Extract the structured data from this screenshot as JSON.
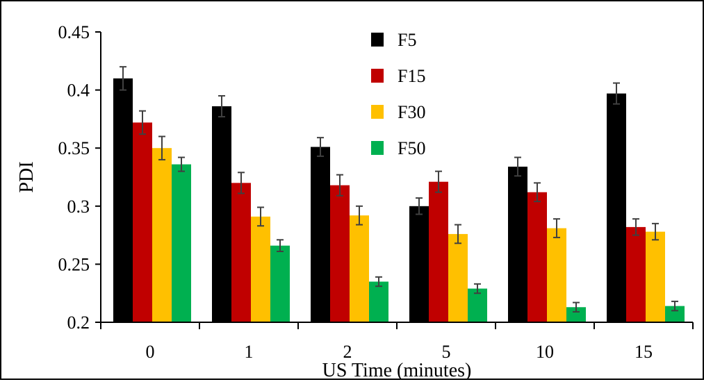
{
  "chart_data": {
    "type": "bar",
    "title": "",
    "xlabel": "US Time (minutes)",
    "ylabel": "PDI",
    "ylim": [
      0.2,
      0.45
    ],
    "yticks": [
      "0.2",
      "0.25",
      "0.3",
      "0.35",
      "0.4",
      "0.45"
    ],
    "categories": [
      "0",
      "1",
      "2",
      "5",
      "10",
      "15"
    ],
    "grid": false,
    "legend_position": "top-center",
    "series": [
      {
        "name": "F5",
        "color": "#000000",
        "values": [
          0.41,
          0.386,
          0.351,
          0.3,
          0.334,
          0.397
        ],
        "errors": [
          0.01,
          0.009,
          0.008,
          0.007,
          0.008,
          0.009
        ]
      },
      {
        "name": "F15",
        "color": "#c00000",
        "values": [
          0.372,
          0.32,
          0.318,
          0.321,
          0.312,
          0.282
        ],
        "errors": [
          0.01,
          0.009,
          0.009,
          0.009,
          0.008,
          0.007
        ]
      },
      {
        "name": "F30",
        "color": "#ffc000",
        "values": [
          0.35,
          0.291,
          0.292,
          0.276,
          0.281,
          0.278
        ],
        "errors": [
          0.01,
          0.008,
          0.008,
          0.008,
          0.008,
          0.007
        ]
      },
      {
        "name": "F50",
        "color": "#00b050",
        "values": [
          0.336,
          0.266,
          0.235,
          0.229,
          0.213,
          0.214
        ],
        "errors": [
          0.006,
          0.005,
          0.004,
          0.004,
          0.004,
          0.004
        ]
      }
    ]
  }
}
